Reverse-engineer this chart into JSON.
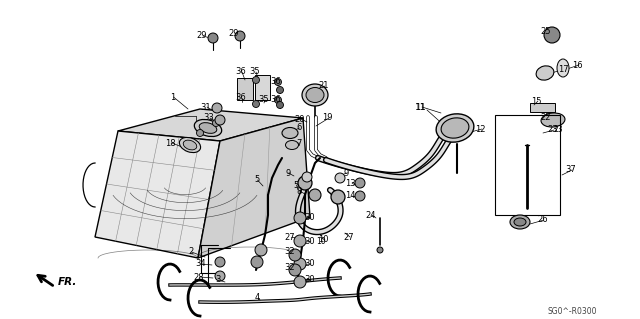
{
  "background_color": "#ffffff",
  "diagram_code": "SG0^-R0300",
  "fig_width": 6.4,
  "fig_height": 3.19,
  "dpi": 100
}
